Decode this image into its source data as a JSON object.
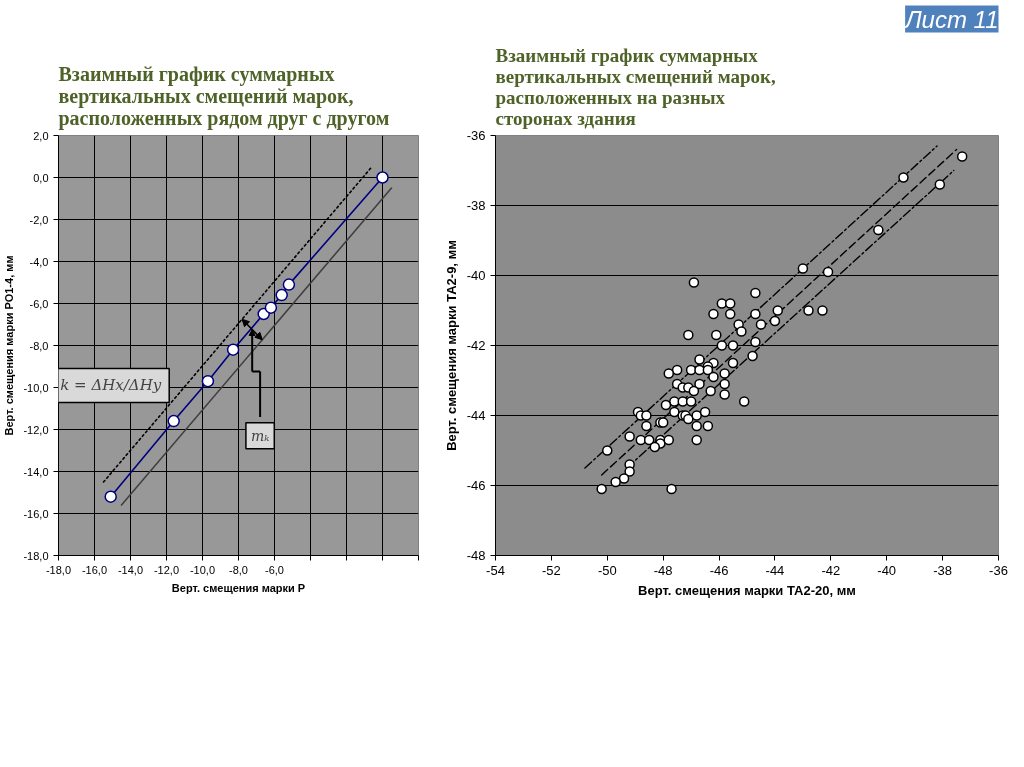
{
  "chart_data": [
    {
      "type": "line",
      "title": "Взаимный график суммарных\nвертикальных смещений марок,\nрасположенных рядом друг с другом",
      "xlabel": "Верт. смещения марки Р",
      "ylabel": "Верт. смещения марки РО1-4, мм",
      "xlim": [
        -18,
        2
      ],
      "xticks": [
        {
          "value": -18,
          "label": "-18,0"
        },
        {
          "value": -16,
          "label": "-16,0"
        },
        {
          "value": -14,
          "label": "-14,0"
        },
        {
          "value": -12,
          "label": "-12,0"
        },
        {
          "value": -10,
          "label": "-10,0"
        },
        {
          "value": -8,
          "label": "-8,0"
        },
        {
          "value": -6,
          "label": "-6,0"
        },
        {
          "value": -4,
          "label": null
        },
        {
          "value": -2,
          "label": null
        },
        {
          "value": 0,
          "label": null
        },
        {
          "value": 2,
          "label": null
        }
      ],
      "ylim": [
        -18,
        2
      ],
      "yticks": [
        {
          "value": -18,
          "label": "-18,0"
        },
        {
          "value": -16,
          "label": "-16,0"
        },
        {
          "value": -14,
          "label": "-14,0"
        },
        {
          "value": -12,
          "label": "-12,0"
        },
        {
          "value": -10,
          "label": "-10,0"
        },
        {
          "value": -8,
          "label": "-8,0"
        },
        {
          "value": -6,
          "label": "-6,0"
        },
        {
          "value": -4,
          "label": "-4,0"
        },
        {
          "value": -2,
          "label": "-2,0"
        },
        {
          "value": 0,
          "label": "0,0"
        },
        {
          "value": 2,
          "label": "2,0"
        }
      ],
      "grid": true,
      "series": [
        {
          "color": "#000080",
          "marker": "circle",
          "line_style": "solid",
          "x": [
            -15.1,
            -11.6,
            -9.7,
            -8.3,
            -6.6,
            -6.2,
            -5.6,
            -5.2,
            0
          ],
          "values": [
            -15.2,
            -11.6,
            -9.7,
            -8.2,
            -6.5,
            -6.2,
            -5.6,
            -5.1,
            0
          ]
        },
        {
          "color": "#000000",
          "marker": "none",
          "line_style": "dotted",
          "x": [
            -15.5,
            -0.6
          ],
          "values": [
            -14.5,
            0.5
          ]
        },
        {
          "color": "#404040",
          "marker": "none",
          "line_style": "solid",
          "x": [
            -14.5,
            0.5
          ],
          "values": [
            -15.6,
            -0.5
          ]
        }
      ],
      "annotations": [
        "k = ΔHx/ΔHy",
        {
          "text": "mₖ",
          "x": -6.8,
          "y": -12.3
        }
      ]
    },
    {
      "type": "scatter",
      "title": "Взаимный график суммарных\nвертикальных смещений марок,\nрасположенных на разных\nсторонах здания",
      "xlabel": "Верт. смещения марки ТА2-20, мм",
      "ylabel": "Верт. смещения марки ТА2-9, мм",
      "xlim": [
        -54,
        -36
      ],
      "xticks": [
        -54,
        -52,
        -50,
        -48,
        -46,
        -44,
        -42,
        -40,
        -38,
        -36
      ],
      "ylim": [
        -48,
        -36
      ],
      "yticks": [
        -48,
        -46,
        -44,
        -42,
        -40,
        -38,
        -36
      ],
      "grid": "y",
      "series": [
        {
          "color": "#ffffff",
          "marker": "circle",
          "x": [
            -37.3,
            -39.4,
            -38.1,
            -40.3,
            -43.0,
            -42.1,
            -46.9,
            -44.7,
            -45.9,
            -45.6,
            -43.9,
            -42.8,
            -42.3,
            -46.2,
            -45.6,
            -44.7,
            -44.0,
            -44.5,
            -45.3,
            -45.2,
            -47.1,
            -46.1,
            -44.7,
            -45.9,
            -45.5,
            -44.8,
            -46.7,
            -46.2,
            -45.5,
            -46.4,
            -47.5,
            -47.8,
            -47.0,
            -46.7,
            -46.4,
            -46.2,
            -45.8,
            -45.8,
            -47.5,
            -47.3,
            -47.1,
            -46.9,
            -46.7,
            -46.3,
            -45.8,
            -45.1,
            -47.6,
            -47.3,
            -47.0,
            -47.9,
            -47.6,
            -48.9,
            -48.8,
            -48.6,
            -47.3,
            -47.2,
            -47.1,
            -46.8,
            -46.5,
            -48.1,
            -48.0,
            -48.6,
            -46.8,
            -46.4,
            -49.2,
            -48.8,
            -48.5,
            -48.1,
            -48.1,
            -48.3,
            -47.8,
            -46.8,
            -50.0,
            -49.2,
            -49.2,
            -49.4,
            -49.7,
            -50.2,
            -47.7
          ],
          "values": [
            -36.6,
            -37.2,
            -37.4,
            -38.7,
            -39.8,
            -39.9,
            -40.2,
            -40.5,
            -40.8,
            -40.8,
            -41.0,
            -41.0,
            -41.0,
            -41.1,
            -41.1,
            -41.1,
            -41.3,
            -41.4,
            -41.4,
            -41.6,
            -41.7,
            -41.7,
            -41.9,
            -42.0,
            -42.0,
            -42.3,
            -42.4,
            -42.5,
            -42.5,
            -42.6,
            -42.7,
            -42.8,
            -42.7,
            -42.7,
            -42.7,
            -42.9,
            -42.8,
            -43.1,
            -43.1,
            -43.2,
            -43.2,
            -43.3,
            -43.1,
            -43.3,
            -43.4,
            -43.6,
            -43.6,
            -43.6,
            -43.6,
            -43.7,
            -43.9,
            -43.9,
            -44.0,
            -44.0,
            -44.0,
            -44.0,
            -44.1,
            -44.0,
            -43.9,
            -44.2,
            -44.2,
            -44.3,
            -44.3,
            -44.3,
            -44.6,
            -44.7,
            -44.7,
            -44.7,
            -44.8,
            -44.9,
            -44.7,
            -44.7,
            -45.0,
            -45.4,
            -45.6,
            -45.8,
            -45.9,
            -46.1,
            -46.1
          ]
        },
        {
          "type": "line",
          "color": "#000000",
          "marker": "none",
          "line_style": "dashed",
          "x": [
            -50.2,
            -37.5
          ],
          "values": [
            -45.7,
            -36.4
          ]
        },
        {
          "type": "line",
          "color": "#000000",
          "marker": "none",
          "line_style": "dashdot",
          "x": [
            -50.8,
            -38.2
          ],
          "values": [
            -45.5,
            -36.3
          ]
        },
        {
          "type": "line",
          "color": "#000000",
          "marker": "none",
          "line_style": "dashdot",
          "x": [
            -49.3,
            -37.6
          ],
          "values": [
            -45.5,
            -37.0
          ]
        }
      ],
      "annotations": [
        "Лист 11"
      ]
    }
  ]
}
